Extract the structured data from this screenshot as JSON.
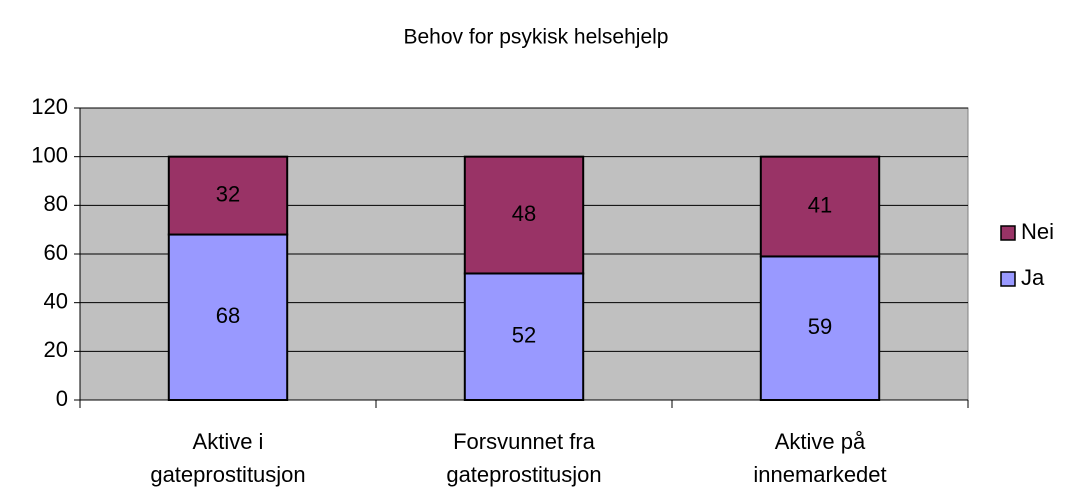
{
  "chart_data": {
    "type": "bar",
    "stacked": true,
    "title": "Behov for psykisk helsehjelp",
    "categories": [
      "Aktive i gateprostitusjon",
      "Forsvunnet fra gateprostitusjon",
      "Aktive på innemarkedet"
    ],
    "series": [
      {
        "name": "Ja",
        "color": "#9999ff",
        "values": [
          68,
          52,
          59
        ]
      },
      {
        "name": "Nei",
        "color": "#993366",
        "values": [
          32,
          48,
          41
        ]
      }
    ],
    "ylim": [
      0,
      120
    ],
    "yticks": [
      0,
      20,
      40,
      60,
      80,
      100,
      120
    ],
    "grid": true,
    "legend": "right"
  }
}
